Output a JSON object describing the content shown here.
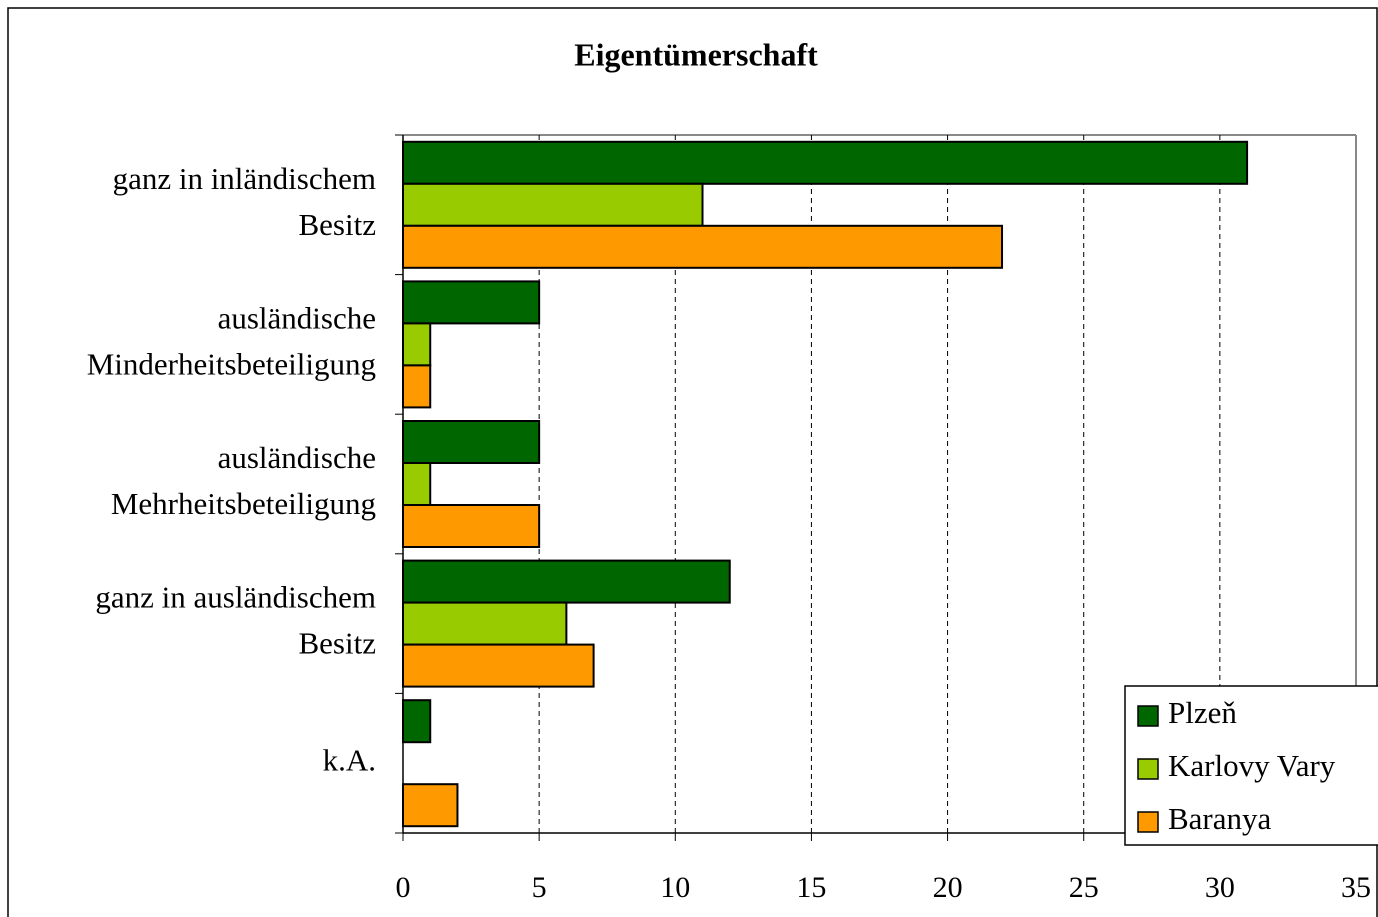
{
  "chart_data": {
    "type": "barh",
    "title": "Eigentümerschaft",
    "categories": [
      [
        "ganz in inländischem",
        "Besitz"
      ],
      [
        "ausländische",
        "Minderheitsbeteiligung"
      ],
      [
        "ausländische",
        "Mehrheitsbeteiligung"
      ],
      [
        "ganz in ausländischem",
        "Besitz"
      ],
      [
        "k.A."
      ]
    ],
    "series": [
      {
        "name": "Plzeň",
        "color": "#006600",
        "values": [
          31,
          5,
          5,
          12,
          1
        ]
      },
      {
        "name": "Karlovy Vary",
        "color": "#99cc00",
        "values": [
          11,
          1,
          1,
          6,
          0
        ]
      },
      {
        "name": "Baranya",
        "color": "#ff9900",
        "values": [
          22,
          1,
          5,
          7,
          2
        ]
      }
    ],
    "xlim": [
      0,
      35
    ],
    "xticks": [
      0,
      5,
      10,
      15,
      20,
      25,
      30,
      35
    ],
    "grid": true,
    "legend": "lower right"
  }
}
